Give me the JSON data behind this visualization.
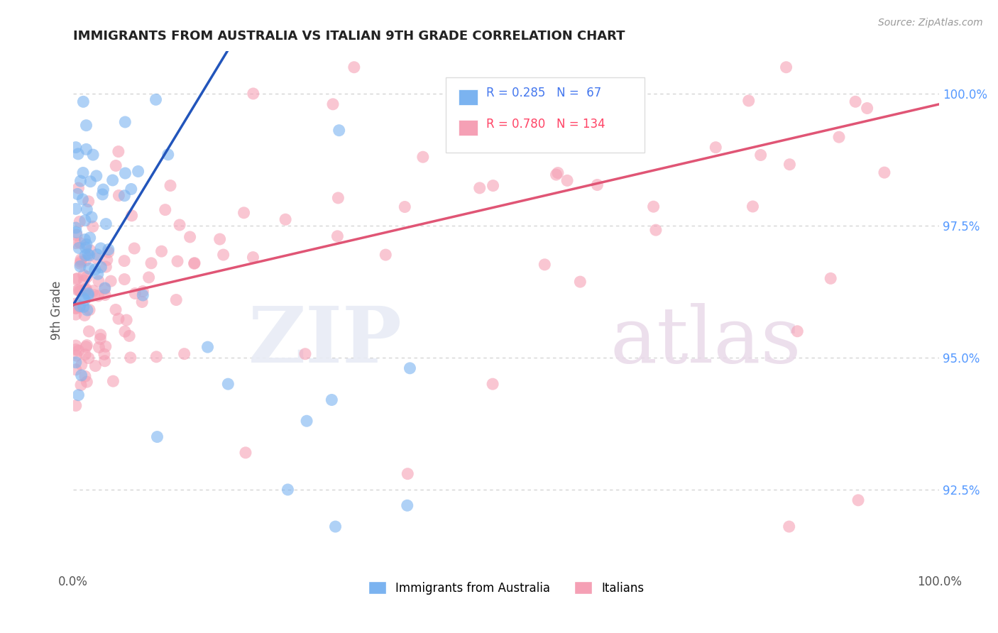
{
  "title": "IMMIGRANTS FROM AUSTRALIA VS ITALIAN 9TH GRADE CORRELATION CHART",
  "source": "Source: ZipAtlas.com",
  "ylabel": "9th Grade",
  "legend_blue_label": "Immigrants from Australia",
  "legend_pink_label": "Italians",
  "R_blue": 0.285,
  "N_blue": 67,
  "R_pink": 0.78,
  "N_pink": 134,
  "blue_color": "#7bb3f0",
  "pink_color": "#f5a0b5",
  "blue_line_color": "#2255bb",
  "pink_line_color": "#e05575",
  "xlim": [
    0,
    100
  ],
  "ylim": [
    91.0,
    100.8
  ],
  "right_yticks": [
    92.5,
    95.0,
    97.5,
    100.0
  ],
  "right_yticklabels": [
    "92.5%",
    "95.0%",
    "97.5%",
    "100.0%"
  ],
  "bg_color": "#ffffff",
  "grid_color": "#cccccc"
}
